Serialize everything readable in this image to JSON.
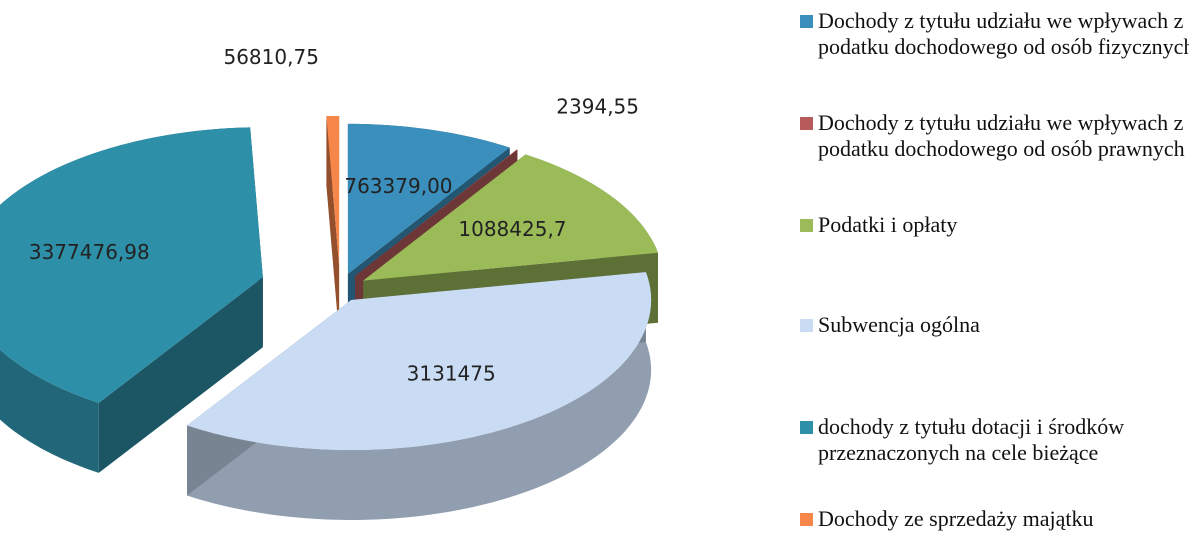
{
  "chart_data": {
    "type": "pie",
    "categories": [
      "Dochody z tytułu udziału we wpływach z podatku dochodowego od osób fizycznych",
      "Dochody z tytułu udziału we wpływach z podatku dochodowego od osób prawnych",
      "Podatki i opłaty",
      "Subwencja ogólna",
      "dochody z tytułu dotacji i środków przeznaczonych na cele bieżące",
      "Dochody ze sprzedaży majątku"
    ],
    "values": [
      763379.0,
      2394.55,
      1088425.7,
      3131475,
      3377476.98,
      56810.75
    ],
    "value_labels": [
      "763379,00",
      "2394,55",
      "1088425,7",
      "3131475",
      "3377476,98",
      "56810,75"
    ],
    "colors": [
      "#3a8fbc",
      "#b65a5c",
      "#9bbb59",
      "#c9dcf4",
      "#2e8fa8",
      "#f7864a"
    ]
  }
}
